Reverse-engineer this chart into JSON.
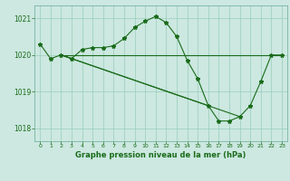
{
  "title": "Graphe pression niveau de la mer (hPa)",
  "background_color": "#cce8e0",
  "plot_bg_color": "#cce8e0",
  "grid_color": "#99ccbb",
  "line_color": "#1a6b1a",
  "xlim": [
    -0.5,
    23.5
  ],
  "ylim": [
    1017.65,
    1021.35
  ],
  "yticks": [
    1018,
    1019,
    1020,
    1021
  ],
  "xticks": [
    0,
    1,
    2,
    3,
    4,
    5,
    6,
    7,
    8,
    9,
    10,
    11,
    12,
    13,
    14,
    15,
    16,
    17,
    18,
    19,
    20,
    21,
    22,
    23
  ],
  "main_series": {
    "x": [
      0,
      1,
      2,
      3,
      4,
      5,
      6,
      7,
      8,
      9,
      10,
      11,
      12,
      13,
      14,
      15,
      16,
      17,
      18,
      19,
      20,
      21,
      22,
      23
    ],
    "y": [
      1020.3,
      1019.9,
      1020.0,
      1019.9,
      1020.15,
      1020.2,
      1020.2,
      1020.25,
      1020.45,
      1020.75,
      1020.92,
      1021.05,
      1020.88,
      1020.5,
      1019.85,
      1019.35,
      1018.62,
      1018.2,
      1018.2,
      1018.32,
      1018.62,
      1019.28,
      1020.0,
      1020.0
    ]
  },
  "flat_line": {
    "x": [
      2,
      23
    ],
    "y": [
      1020.0,
      1020.0
    ]
  },
  "diag_line1": {
    "x": [
      2,
      16
    ],
    "y": [
      1020.0,
      1018.62
    ]
  },
  "diag_line2": {
    "x": [
      2,
      19
    ],
    "y": [
      1020.0,
      1018.32
    ]
  }
}
